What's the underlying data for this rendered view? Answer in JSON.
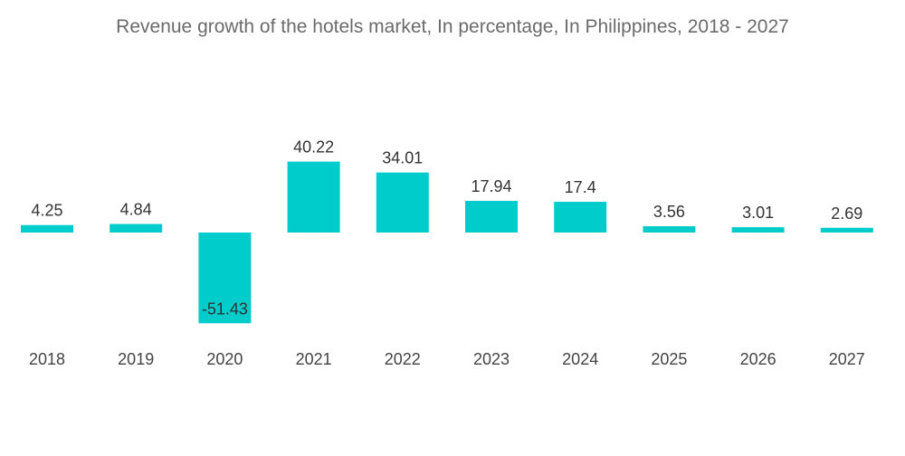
{
  "chart_data": {
    "type": "bar",
    "title": "Revenue growth of the hotels market, In percentage, In Philippines, 2018 - 2027",
    "xlabel": "",
    "ylabel": "",
    "categories": [
      "2018",
      "2019",
      "2020",
      "2021",
      "2022",
      "2023",
      "2024",
      "2025",
      "2026",
      "2027"
    ],
    "values": [
      4.25,
      4.84,
      -51.43,
      40.22,
      34.01,
      17.94,
      17.4,
      3.56,
      3.01,
      2.69
    ],
    "value_labels": [
      "4.25",
      "4.84",
      "-51.43",
      "40.22",
      "34.01",
      "17.94",
      "17.4",
      "3.56",
      "3.01",
      "2.69"
    ],
    "ylim": [
      -51.43,
      40.22
    ],
    "grid": false,
    "legend": "none",
    "bar_color": "#00CCCC"
  }
}
